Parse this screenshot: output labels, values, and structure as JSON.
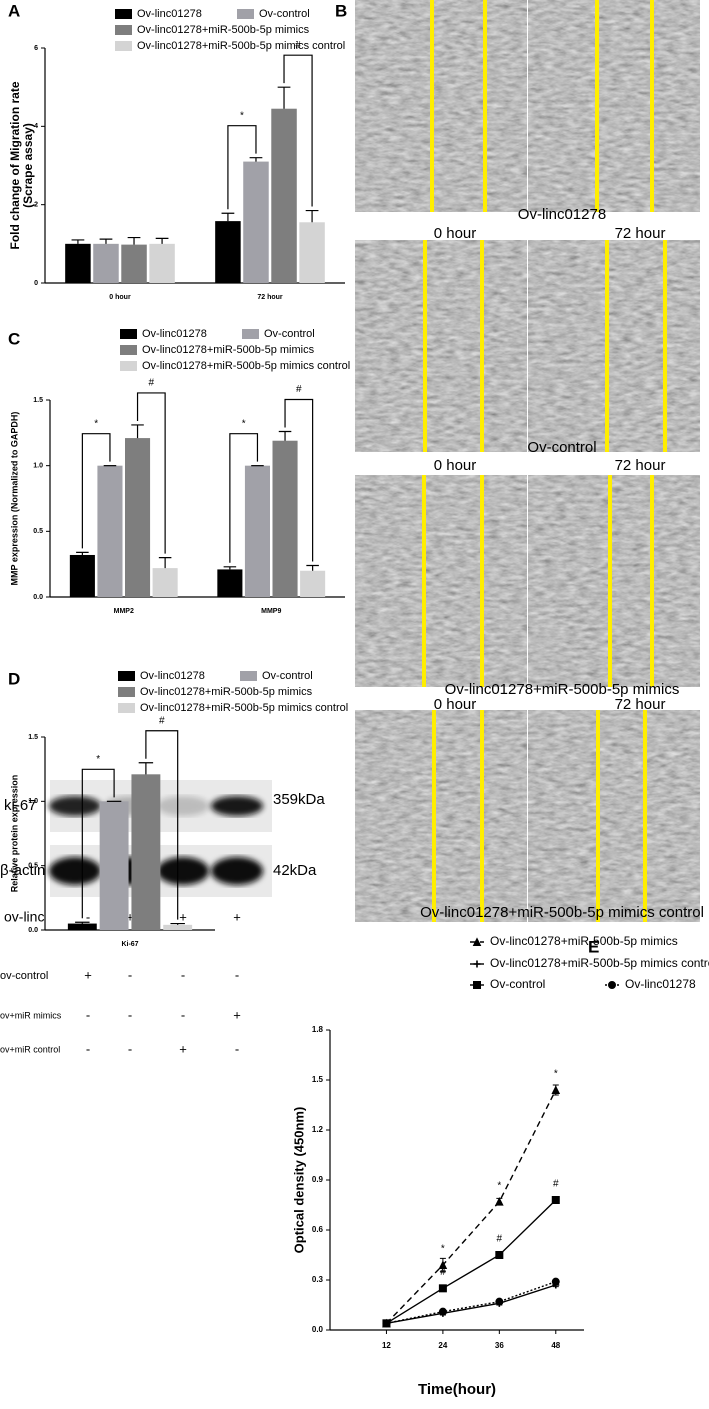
{
  "chart_data": [
    {
      "type": "bar",
      "label": "A",
      "ylabel": [
        "Fold change of Migration rate",
        "(Scrape assay)"
      ],
      "categories": [
        "0 hour",
        "72 hour"
      ],
      "series": [
        {
          "name": "Ov-linc01278",
          "color": "#000000",
          "values": [
            1.0,
            1.58
          ],
          "errors": [
            0.1,
            0.2
          ]
        },
        {
          "name": "Ov-control",
          "color": "#a1a1a8",
          "values": [
            1.0,
            3.1
          ],
          "errors": [
            0.12,
            0.1
          ]
        },
        {
          "name": "Ov-linc01278+miR-500b-5p mimics",
          "color": "#7e7e7e",
          "values": [
            0.98,
            4.45
          ],
          "errors": [
            0.18,
            0.55
          ]
        },
        {
          "name": "Ov-linc01278+miR-500b-5p mimics control",
          "color": "#d4d4d4",
          "values": [
            1.0,
            1.55
          ],
          "errors": [
            0.14,
            0.3
          ]
        }
      ],
      "ylim": [
        0,
        6
      ],
      "yticks": [
        0,
        2,
        4,
        6
      ],
      "annotations": [
        "*",
        "#"
      ]
    },
    {
      "type": "bar",
      "label": "C",
      "ylabel": [
        "MMP expression (Normalized to GAPDH)"
      ],
      "categories": [
        "MMP2",
        "MMP9"
      ],
      "series": [
        {
          "name": "Ov-linc01278",
          "color": "#000000",
          "values": [
            0.32,
            0.21
          ],
          "errors": [
            0.02,
            0.02
          ]
        },
        {
          "name": "Ov-control",
          "color": "#a1a1a8",
          "values": [
            1.0,
            1.0
          ],
          "errors": [
            0,
            0
          ]
        },
        {
          "name": "Ov-linc01278+miR-500b-5p mimics",
          "color": "#7e7e7e",
          "values": [
            1.21,
            1.19
          ],
          "errors": [
            0.1,
            0.07
          ]
        },
        {
          "name": "Ov-linc01278+miR-500b-5p mimics control",
          "color": "#d4d4d4",
          "values": [
            0.22,
            0.2
          ],
          "errors": [
            0.08,
            0.04
          ]
        }
      ],
      "ylim": [
        0,
        1.5
      ],
      "yticks": [
        {
          "value": 0,
          "label": "0.0"
        },
        {
          "value": 0.5,
          "label": "0.5"
        },
        {
          "value": 1,
          "label": "1.0"
        },
        {
          "value": 1.5,
          "label": "1.5"
        }
      ],
      "annotations": [
        "*",
        "#",
        "*",
        "#"
      ]
    },
    {
      "type": "bar",
      "label": "D",
      "ylabel": [
        "Relative protein expression"
      ],
      "categories": [
        "Ki-67"
      ],
      "series": [
        {
          "name": "Ov-linc01278",
          "color": "#000000",
          "values": [
            0.05
          ],
          "errors": [
            0.01
          ]
        },
        {
          "name": "Ov-control",
          "color": "#a1a1a8",
          "values": [
            1.0
          ],
          "errors": [
            0
          ]
        },
        {
          "name": "Ov-linc01278+miR-500b-5p mimics",
          "color": "#7e7e7e",
          "values": [
            1.21
          ],
          "errors": [
            0.09
          ]
        },
        {
          "name": "Ov-linc01278+miR-500b-5p mimics control",
          "color": "#d4d4d4",
          "values": [
            0.04
          ],
          "errors": [
            0.01
          ]
        }
      ],
      "ylim": [
        0,
        1.5
      ],
      "yticks": [
        {
          "value": 0,
          "label": "0.0"
        },
        {
          "value": 0.5,
          "label": "0.5"
        },
        {
          "value": 1,
          "label": "1.0"
        },
        {
          "value": 1.5,
          "label": "1.5"
        }
      ],
      "annotations": [
        "*",
        "#"
      ]
    },
    {
      "type": "line",
      "label": "E",
      "xlabel": "Time(hour)",
      "ylabel": "Optical density (450nm)",
      "x": [
        12,
        24,
        36,
        48
      ],
      "xlim": [
        0,
        54
      ],
      "xticks": [
        12,
        24,
        36,
        48
      ],
      "ylim": [
        0,
        1.8
      ],
      "yticks": [
        {
          "value": 0,
          "label": "0.0"
        },
        {
          "value": 0.3,
          "label": "0.3"
        },
        {
          "value": 0.6,
          "label": "0.6"
        },
        {
          "value": 0.9,
          "label": "0.9"
        },
        {
          "value": 1.2,
          "label": "1.2"
        },
        {
          "value": 1.5,
          "label": "1.5"
        },
        {
          "value": 1.8,
          "label": "1.8"
        }
      ],
      "series": [
        {
          "name": "Ov-linc01278+miR-500b-5p mimics",
          "color": "#000000",
          "line_style": "dashed",
          "marker": "triangle",
          "values": [
            0.04,
            0.39,
            0.77,
            1.44
          ],
          "errors": [
            0.005,
            0.04,
            0.02,
            0.03
          ],
          "point_labels": [
            null,
            "*",
            "*",
            "*"
          ]
        },
        {
          "name": "Ov-linc01278+miR-500b-5p mimics control",
          "color": "#000000",
          "line_style": "solid",
          "marker": "plus",
          "values": [
            0.04,
            0.1,
            0.16,
            0.27
          ],
          "errors": [
            0.005,
            0.01,
            0.01,
            0.01
          ],
          "point_labels": [
            null,
            null,
            null,
            null
          ]
        },
        {
          "name": "Ov-control",
          "color": "#000000",
          "line_style": "solid",
          "marker": "square",
          "values": [
            0.04,
            0.25,
            0.45,
            0.78
          ],
          "errors": [
            0.005,
            0.01,
            0.01,
            0.01
          ],
          "point_labels": [
            null,
            "#",
            "#",
            "#"
          ]
        },
        {
          "name": "Ov-linc01278",
          "color": "#000000",
          "line_style": "dotted",
          "marker": "circle",
          "values": [
            0.04,
            0.11,
            0.17,
            0.29
          ],
          "errors": [
            0.005,
            0.01,
            0.01,
            0.01
          ],
          "point_labels": [
            null,
            null,
            null,
            null
          ]
        }
      ]
    }
  ],
  "panel_b": {
    "label": "B",
    "panels": [
      {
        "name": "Ov-linc01278",
        "hours": [
          "0 hour",
          "72 hour"
        ]
      },
      {
        "name": "Ov-control",
        "hours": [
          "0 hour",
          "72 hour"
        ]
      },
      {
        "name": "Ov-linc01278+miR-500b-5p mimics",
        "hours": [
          "0 hour",
          "72 hour"
        ]
      },
      {
        "name": "Ov-linc01278+miR-500b-5p mimics control",
        "hours": []
      }
    ]
  },
  "western_blot": {
    "bands": [
      {
        "name": "ki-67",
        "size": "359kDa"
      },
      {
        "name": "β-actin",
        "size": "42kDa"
      }
    ],
    "rows": [
      {
        "name": "ov-linc",
        "signs": [
          "-",
          "+",
          "+",
          "+"
        ]
      },
      {
        "name": "ov-control",
        "signs": [
          "+",
          "-",
          "-",
          "-"
        ]
      },
      {
        "name": "ov+miR mimics",
        "signs": [
          "-",
          "-",
          "-",
          "+"
        ]
      },
      {
        "name": "ov+miR control",
        "signs": [
          "-",
          "-",
          "+",
          "-"
        ]
      }
    ]
  }
}
